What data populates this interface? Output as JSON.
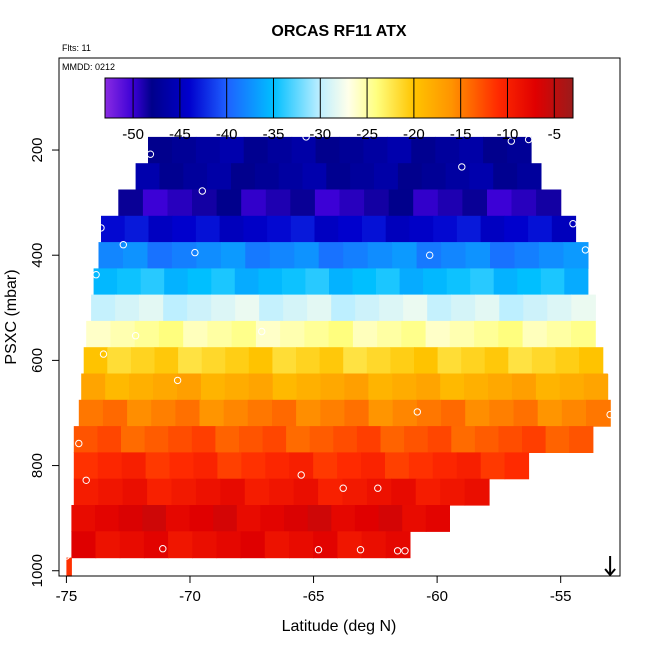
{
  "chart_data": {
    "type": "heatmap",
    "title": "ORCAS RF11 ATX",
    "flights_label": "Flts: 11",
    "date_label": "MMDD: 0212",
    "xlabel": "Latitude (deg N)",
    "ylabel": "PSXC (mbar)",
    "xlim": [
      -75.3,
      -52.6
    ],
    "ylim": [
      1010,
      25
    ],
    "x_ticks": [
      -75,
      -70,
      -65,
      -60,
      -55
    ],
    "y_ticks": [
      200,
      400,
      600,
      800,
      1000
    ],
    "colorbar": {
      "range": [
        -53,
        -3
      ],
      "ticks": [
        -50,
        -45,
        -40,
        -35,
        -30,
        -25,
        -20,
        -15,
        -10,
        -5
      ]
    },
    "bands": [
      {
        "p_top": 175,
        "p_bot": 225,
        "x0": -71.7,
        "x1": -56.2,
        "value": -47
      },
      {
        "p_top": 225,
        "p_bot": 275,
        "x0": -72.2,
        "x1": -55.8,
        "value": -47
      },
      {
        "p_top": 275,
        "p_bot": 325,
        "x0": -72.9,
        "x1": -55.0,
        "value": -49
      },
      {
        "p_top": 325,
        "p_bot": 375,
        "x0": -73.6,
        "x1": -54.4,
        "value": -44
      },
      {
        "p_top": 375,
        "p_bot": 425,
        "x0": -73.7,
        "x1": -53.9,
        "value": -38
      },
      {
        "p_top": 425,
        "p_bot": 475,
        "x0": -73.9,
        "x1": -53.9,
        "value": -35
      },
      {
        "p_top": 475,
        "p_bot": 525,
        "x0": -74.0,
        "x1": -53.6,
        "value": -29
      },
      {
        "p_top": 525,
        "p_bot": 575,
        "x0": -74.2,
        "x1": -53.6,
        "value": -25
      },
      {
        "p_top": 575,
        "p_bot": 625,
        "x0": -74.3,
        "x1": -53.3,
        "value": -21
      },
      {
        "p_top": 625,
        "p_bot": 675,
        "x0": -74.4,
        "x1": -53.1,
        "value": -18
      },
      {
        "p_top": 675,
        "p_bot": 725,
        "x0": -74.5,
        "x1": -53.0,
        "value": -15
      },
      {
        "p_top": 725,
        "p_bot": 775,
        "x0": -74.7,
        "x1": -53.7,
        "value": -13
      },
      {
        "p_top": 775,
        "p_bot": 825,
        "x0": -74.7,
        "x1": -56.3,
        "value": -11
      },
      {
        "p_top": 825,
        "p_bot": 875,
        "x0": -74.7,
        "x1": -57.9,
        "value": -9
      },
      {
        "p_top": 875,
        "p_bot": 925,
        "x0": -74.8,
        "x1": -59.5,
        "value": -7
      },
      {
        "p_top": 925,
        "p_bot": 975,
        "x0": -74.8,
        "x1": -61.1,
        "value": -8
      },
      {
        "p_top": 975,
        "p_bot": 1010,
        "x0": -75.0,
        "x1": -74.8,
        "value": -12
      }
    ],
    "points": [
      {
        "lat": -65.3,
        "p": 175
      },
      {
        "lat": -57.0,
        "p": 183
      },
      {
        "lat": -56.3,
        "p": 180
      },
      {
        "lat": -71.6,
        "p": 208
      },
      {
        "lat": -59.0,
        "p": 232
      },
      {
        "lat": -69.5,
        "p": 278
      },
      {
        "lat": -54.5,
        "p": 340
      },
      {
        "lat": -73.6,
        "p": 348
      },
      {
        "lat": -72.7,
        "p": 380
      },
      {
        "lat": -69.8,
        "p": 395
      },
      {
        "lat": -60.3,
        "p": 400
      },
      {
        "lat": -54.0,
        "p": 390
      },
      {
        "lat": -73.8,
        "p": 437
      },
      {
        "lat": -73.5,
        "p": 588
      },
      {
        "lat": -72.2,
        "p": 553
      },
      {
        "lat": -67.1,
        "p": 545
      },
      {
        "lat": -53.0,
        "p": 620
      },
      {
        "lat": -70.5,
        "p": 638
      },
      {
        "lat": -60.8,
        "p": 698
      },
      {
        "lat": -53.0,
        "p": 703
      },
      {
        "lat": -74.5,
        "p": 758
      },
      {
        "lat": -74.2,
        "p": 828
      },
      {
        "lat": -65.5,
        "p": 818
      },
      {
        "lat": -63.8,
        "p": 843
      },
      {
        "lat": -62.4,
        "p": 843
      },
      {
        "lat": -75.0,
        "p": 972
      },
      {
        "lat": -71.1,
        "p": 958
      },
      {
        "lat": -64.8,
        "p": 960
      },
      {
        "lat": -63.1,
        "p": 960
      },
      {
        "lat": -61.6,
        "p": 962
      },
      {
        "lat": -61.3,
        "p": 962
      }
    ],
    "arrow": {
      "lat": -53.0,
      "p": 1010
    }
  }
}
